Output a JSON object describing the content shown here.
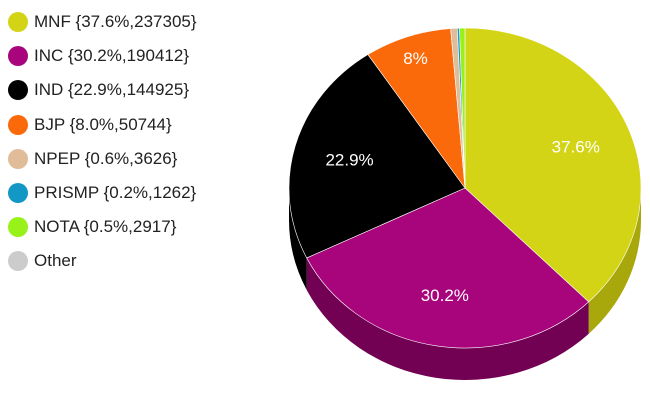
{
  "chart_data": {
    "type": "pie",
    "title": "",
    "legend_position": "left",
    "slices": [
      {
        "label": "MNF",
        "percent": 37.6,
        "value": 237305,
        "legend_text": "MNF {37.6%,237305}",
        "slice_label": "37.6%",
        "color": "#d4d416",
        "side_color": "#a8a80d"
      },
      {
        "label": "INC",
        "percent": 30.2,
        "value": 190412,
        "legend_text": "INC {30.2%,190412}",
        "slice_label": "30.2%",
        "color": "#a8047c",
        "side_color": "#720153"
      },
      {
        "label": "IND",
        "percent": 22.9,
        "value": 144925,
        "legend_text": "IND {22.9%,144925}",
        "slice_label": "22.9%",
        "color": "#000000",
        "side_color": "#000000"
      },
      {
        "label": "BJP",
        "percent": 8.0,
        "value": 50744,
        "legend_text": "BJP {8.0%,50744}",
        "slice_label": "8%",
        "color": "#fa6a0a",
        "side_color": "#c04f05"
      },
      {
        "label": "NPEP",
        "percent": 0.6,
        "value": 3626,
        "legend_text": "NPEP {0.6%,3626}",
        "slice_label": "",
        "color": "#e0bc98",
        "side_color": "#b29271"
      },
      {
        "label": "PRISMP",
        "percent": 0.2,
        "value": 1262,
        "legend_text": "PRISMP {0.2%,1262}",
        "slice_label": "",
        "color": "#1397c4",
        "side_color": "#0e7092"
      },
      {
        "label": "NOTA",
        "percent": 0.5,
        "value": 2917,
        "legend_text": "NOTA {0.5%,2917}",
        "slice_label": "",
        "color": "#98f21a",
        "side_color": "#6fb30f"
      },
      {
        "label": "Other",
        "percent": 0,
        "value": 0,
        "legend_text": "Other",
        "slice_label": "",
        "color": "#cccccc",
        "side_color": "#999999"
      }
    ]
  }
}
